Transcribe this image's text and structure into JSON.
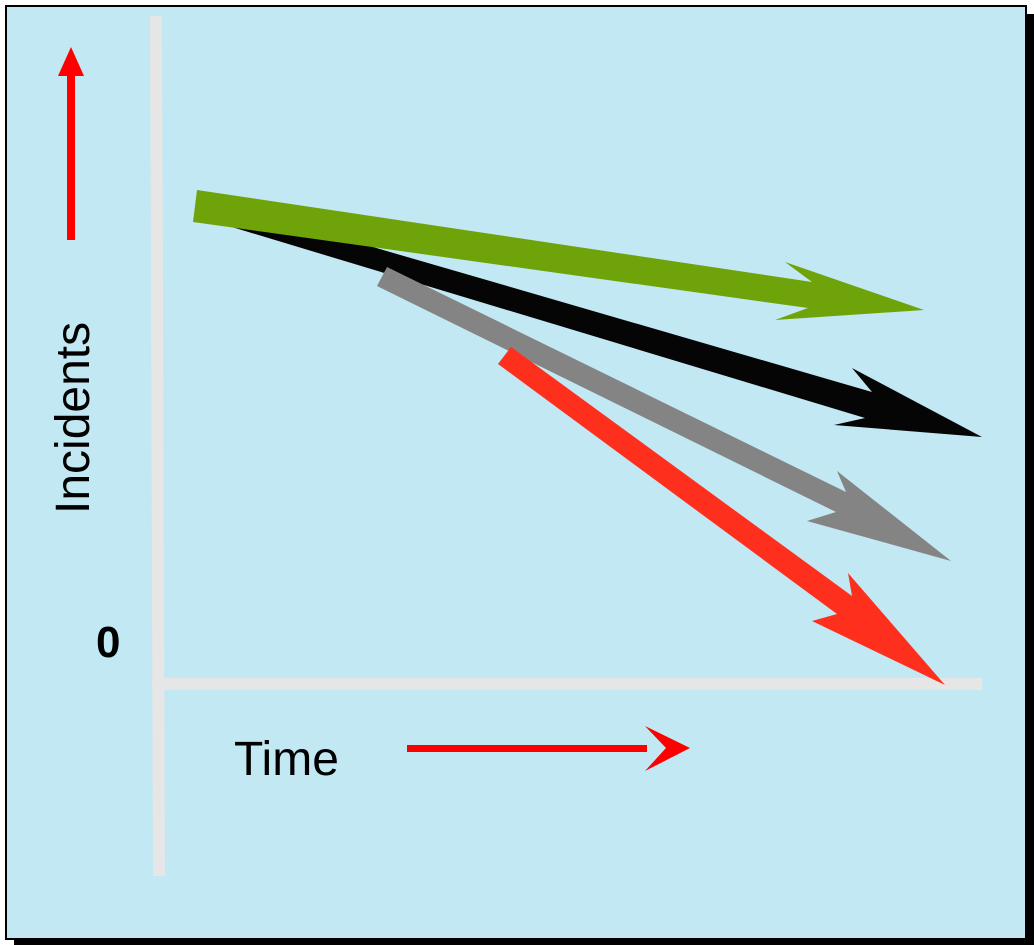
{
  "diagram": {
    "y_axis_label": "Incidents",
    "x_axis_label": "Time",
    "origin_label": "0",
    "colors": {
      "background": "#C1E8F3",
      "border": "#000000",
      "shadow": "#000000",
      "axis": "#E6E6E6",
      "label_arrow": "#FF0000",
      "text": "#000000"
    },
    "trend_arrows": [
      {
        "id": "green",
        "color": "#6FA30A"
      },
      {
        "id": "black",
        "color": "#050505"
      },
      {
        "id": "gray",
        "color": "#848484"
      },
      {
        "id": "red",
        "color": "#FF2F1E"
      }
    ]
  }
}
